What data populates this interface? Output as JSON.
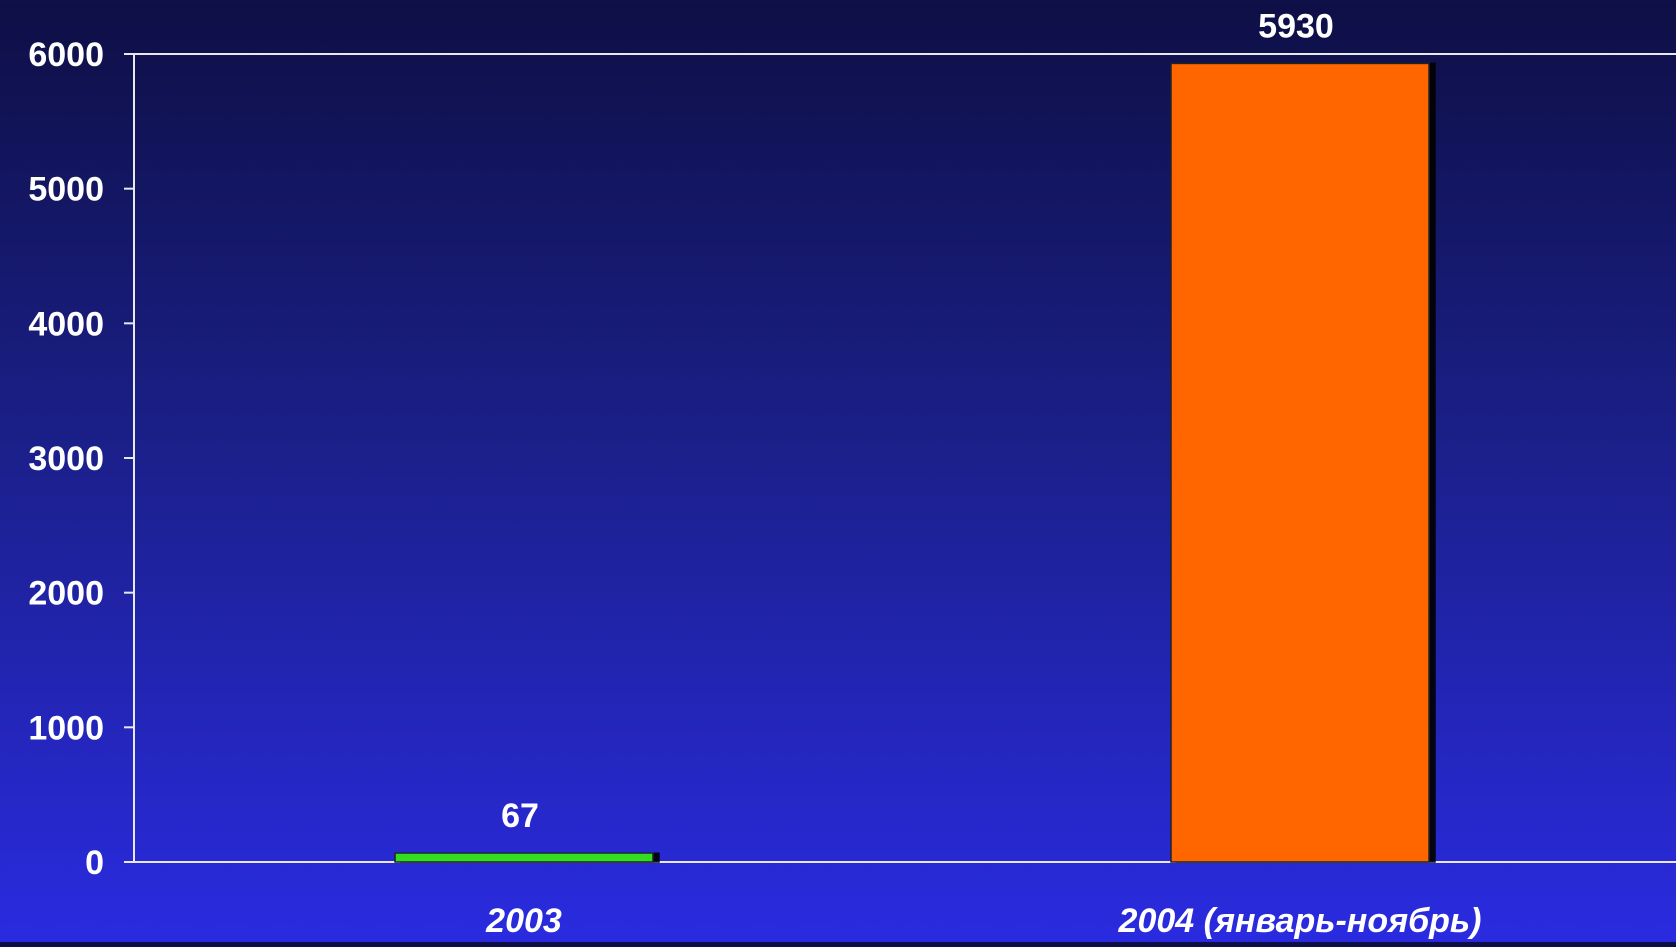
{
  "chart_data": {
    "type": "bar",
    "categories": [
      "2003",
      "2004 (январь-ноябрь)"
    ],
    "values": [
      67,
      5930
    ],
    "data_labels": [
      "67",
      "5930"
    ],
    "yticks": [
      "0",
      "1000",
      "2000",
      "3000",
      "4000",
      "5000",
      "6000"
    ],
    "ytick_values": [
      0,
      1000,
      2000,
      3000,
      4000,
      5000,
      6000
    ],
    "ylim": [
      0,
      6000
    ],
    "bar_colors": [
      "#33dd22",
      "#ff6600"
    ],
    "axis_color": "#e8e8f0",
    "grid": false,
    "title": "",
    "xlabel": "",
    "ylabel": ""
  }
}
